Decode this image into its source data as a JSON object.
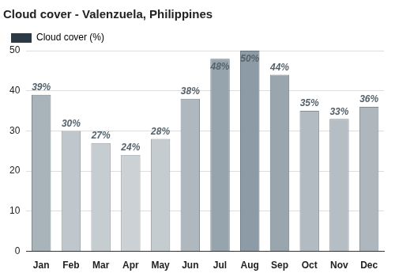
{
  "chart_data": {
    "type": "bar",
    "title": "Cloud cover - Valenzuela, Philippines",
    "categories": [
      "Jan",
      "Feb",
      "Mar",
      "Apr",
      "May",
      "Jun",
      "Jul",
      "Aug",
      "Sep",
      "Oct",
      "Nov",
      "Dec"
    ],
    "series": [
      {
        "name": "Cloud cover (%)",
        "color": "#2b3a45",
        "colors": [
          "#a9b3ba",
          "#c0c7cc",
          "#c6cdd1",
          "#cbd1d5",
          "#c5ccd0",
          "#aeb8be",
          "#96a4ad",
          "#8c9ba5",
          "#99a6ae",
          "#b1bbc1",
          "#b5bec4",
          "#adb7bd"
        ],
        "values": [
          39,
          30,
          27,
          24,
          28,
          38,
          48,
          50,
          44,
          35,
          33,
          36
        ],
        "value_labels": [
          "39%",
          "30%",
          "27%",
          "24%",
          "28%",
          "38%",
          "48%",
          "50%",
          "44%",
          "35%",
          "33%",
          "36%"
        ]
      }
    ],
    "ylim": [
      0,
      50
    ],
    "yticks": [
      0,
      10,
      20,
      30,
      40,
      50
    ],
    "grid": true,
    "legend": "upper left",
    "data_labels": true
  }
}
